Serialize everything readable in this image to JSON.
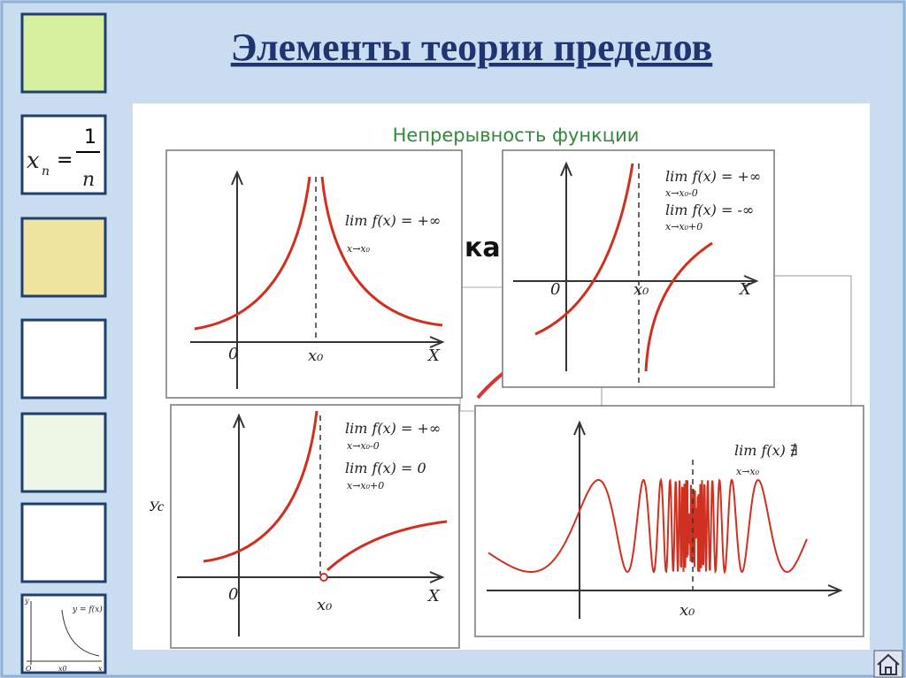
{
  "header": {
    "title": "Элементы теории пределов"
  },
  "slide": {
    "subtitle": "Непрерывность функции",
    "fragments": [
      "ка",
      "Ус"
    ]
  },
  "thumbnails": {
    "formula": {
      "x": "x",
      "n": "n",
      "eq": "=",
      "num": "1",
      "den": "n"
    },
    "last": {
      "fx": "y = f(x)",
      "x0": "x0",
      "o": "O",
      "y": "y",
      "x": "x"
    }
  },
  "graphs": [
    {
      "notes": [
        "lim f(x) = +∞",
        "x→x₀"
      ],
      "origin": "0",
      "point": "x₀",
      "axis": "X"
    },
    {
      "notes": [
        "lim f(x) = +∞",
        "x→x₀-0",
        "lim f(x) = -∞",
        "x→x₀+0"
      ],
      "origin": "0",
      "point": "x₀",
      "axis": "X"
    },
    {
      "notes": [
        "lim f(x) = +∞",
        "x→x₀-0",
        "lim f(x) = 0",
        "x→x₀+0"
      ],
      "origin": "0",
      "point": "x₀",
      "axis": "X"
    },
    {
      "notes": [
        "lim f(x) ∄",
        "x→x₀"
      ],
      "point": "x₀"
    }
  ]
}
